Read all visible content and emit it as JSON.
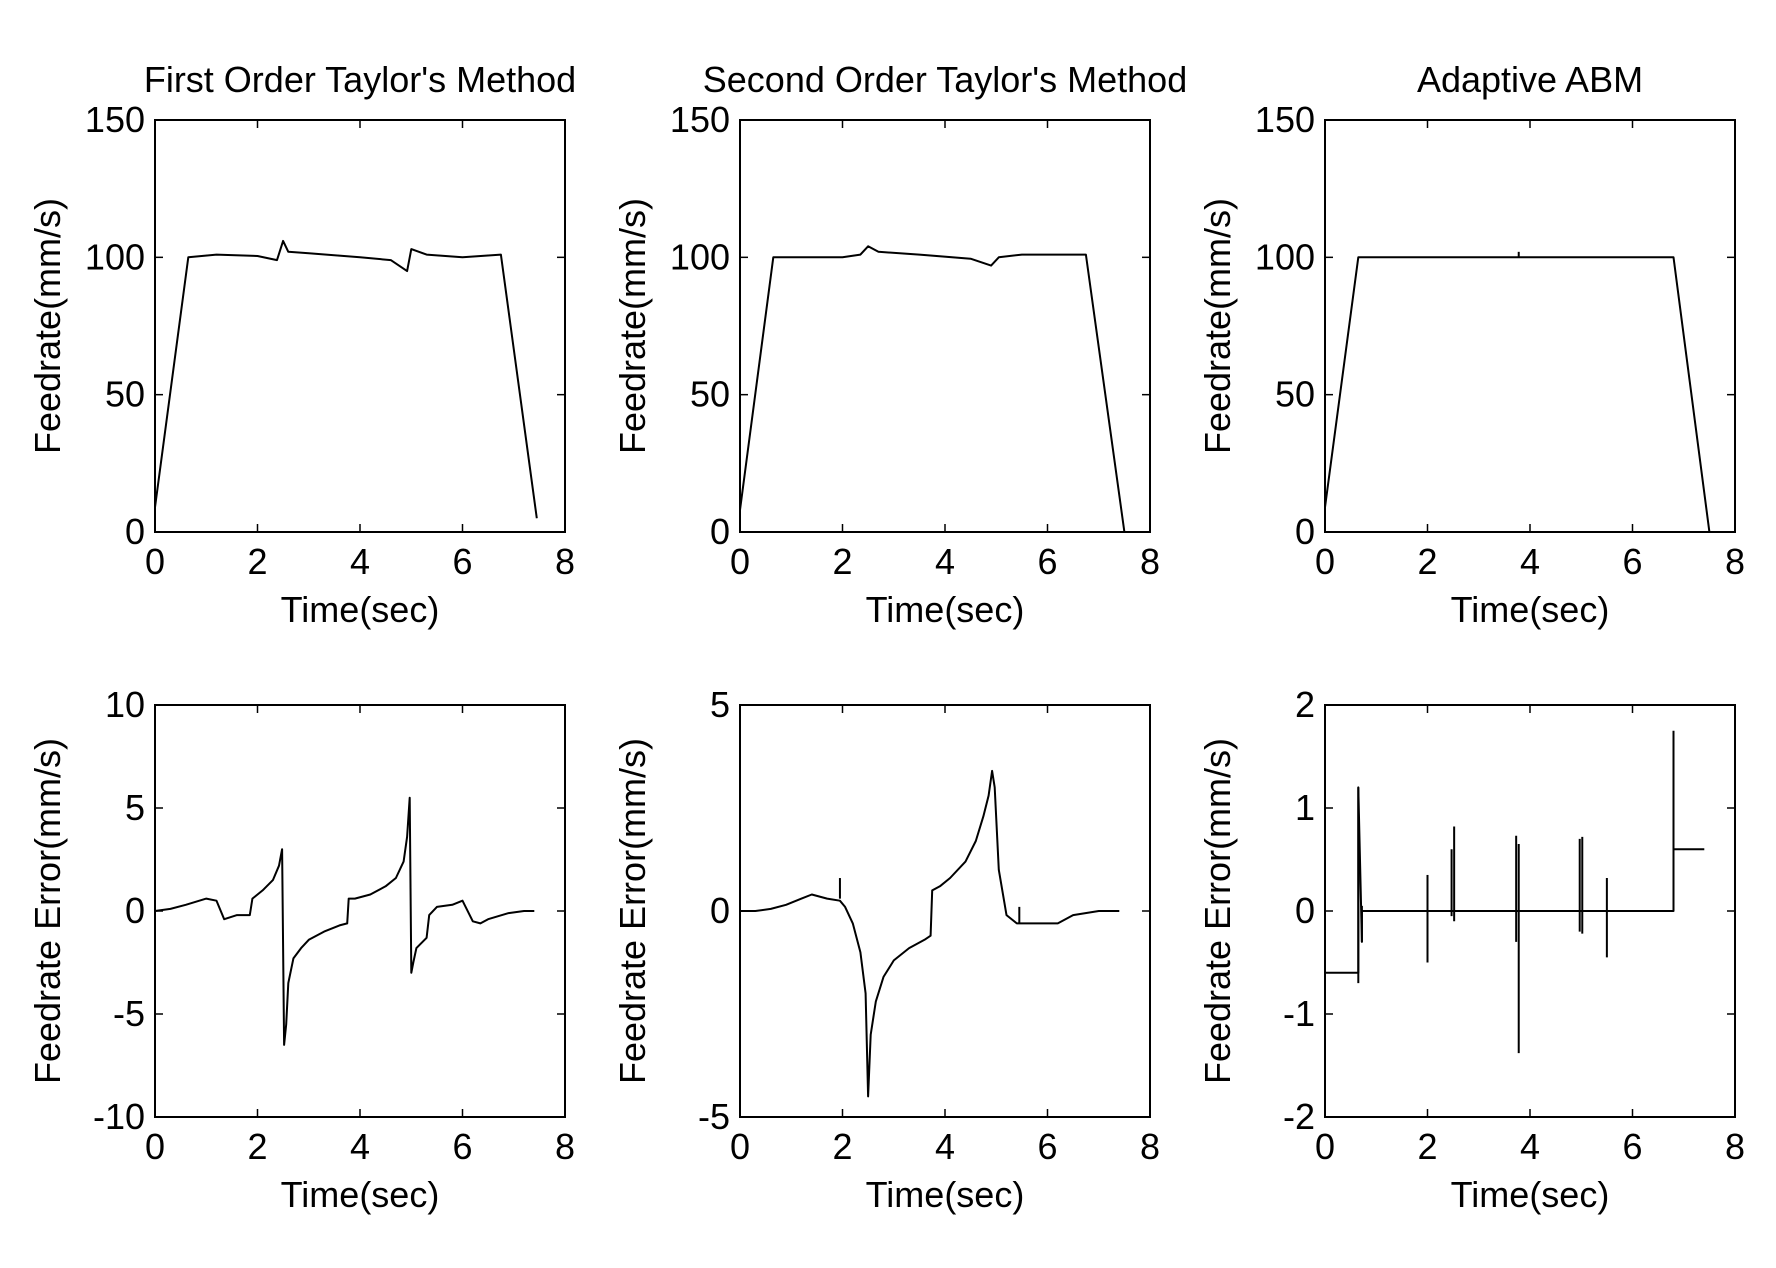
{
  "chart_data": [
    {
      "type": "line",
      "title": "First Order Taylor's Method",
      "xlabel": "Time(sec)",
      "ylabel": "Feedrate(mm/s)",
      "xlim": [
        0,
        8
      ],
      "ylim": [
        0,
        150
      ],
      "xticks": [
        0,
        2,
        4,
        6,
        8
      ],
      "yticks": [
        0,
        50,
        100,
        150
      ],
      "grid": false,
      "series": [
        {
          "x": [
            0,
            0.65,
            1.2,
            2.0,
            2.38,
            2.5,
            2.6,
            3.0,
            4.0,
            4.6,
            4.92,
            5.0,
            5.3,
            6.0,
            6.75,
            7.45
          ],
          "y": [
            9,
            100,
            101,
            100.5,
            99,
            106,
            102,
            101.5,
            100,
            99,
            95,
            103,
            101,
            100,
            101,
            5
          ]
        }
      ],
      "spikes": []
    },
    {
      "type": "line",
      "title": "Second Order Taylor's Method",
      "xlabel": "Time(sec)",
      "ylabel": "Feedrate(mm/s)",
      "xlim": [
        0,
        8
      ],
      "ylim": [
        0,
        150
      ],
      "xticks": [
        0,
        2,
        4,
        6,
        8
      ],
      "yticks": [
        0,
        50,
        100,
        150
      ],
      "grid": false,
      "series": [
        {
          "x": [
            0,
            0.65,
            2.0,
            2.35,
            2.5,
            2.7,
            3.5,
            4.5,
            4.9,
            5.05,
            5.5,
            6.75,
            7.5
          ],
          "y": [
            8,
            100,
            100,
            101,
            104,
            102,
            101,
            99.5,
            97,
            100,
            101,
            101,
            0
          ]
        }
      ],
      "spikes": []
    },
    {
      "type": "line",
      "title": "Adaptive ABM",
      "xlabel": "Time(sec)",
      "ylabel": "Feedrate(mm/s)",
      "xlim": [
        0,
        8
      ],
      "ylim": [
        0,
        150
      ],
      "xticks": [
        0,
        2,
        4,
        6,
        8
      ],
      "yticks": [
        0,
        50,
        100,
        150
      ],
      "grid": false,
      "series": [
        {
          "x": [
            0,
            0.65,
            6.8,
            7.5
          ],
          "y": [
            9,
            100,
            100,
            0
          ]
        }
      ],
      "spikes": [
        {
          "x": 3.78,
          "y0": 100,
          "y1": 102
        }
      ]
    },
    {
      "type": "line",
      "title": "",
      "xlabel": "Time(sec)",
      "ylabel": "Feedrate Error(mm/s)",
      "xlim": [
        0,
        8
      ],
      "ylim": [
        -10,
        10
      ],
      "xticks": [
        0,
        2,
        4,
        6,
        8
      ],
      "yticks": [
        -10,
        -5,
        0,
        5,
        10
      ],
      "grid": false,
      "series": [
        {
          "x": [
            0,
            0.3,
            0.6,
            1.0,
            1.2,
            1.35,
            1.6,
            1.85,
            1.9,
            1.95,
            2.1,
            2.3,
            2.42,
            2.48,
            2.52,
            2.56,
            2.6,
            2.7,
            2.85,
            3.0,
            3.3,
            3.6,
            3.75,
            3.78,
            3.9,
            4.2,
            4.5,
            4.7,
            4.85,
            4.92,
            4.97,
            5.0,
            5.04,
            5.1,
            5.3,
            5.35,
            5.5,
            5.8,
            6.0,
            6.2,
            6.35,
            6.5,
            6.9,
            7.2,
            7.4
          ],
          "y": [
            0,
            0.1,
            0.3,
            0.6,
            0.5,
            -0.4,
            -0.2,
            -0.2,
            0.6,
            0.7,
            1.0,
            1.5,
            2.2,
            3.0,
            -6.5,
            -5.5,
            -3.5,
            -2.3,
            -1.8,
            -1.4,
            -1.0,
            -0.7,
            -0.6,
            0.6,
            0.6,
            0.8,
            1.2,
            1.6,
            2.4,
            3.6,
            5.5,
            -3.0,
            -2.5,
            -1.8,
            -1.3,
            -0.2,
            0.2,
            0.3,
            0.5,
            -0.5,
            -0.6,
            -0.4,
            -0.1,
            0,
            0
          ]
        }
      ],
      "spikes": []
    },
    {
      "type": "line",
      "title": "",
      "xlabel": "Time(sec)",
      "ylabel": "Feedrate Error(mm/s)",
      "xlim": [
        0,
        8
      ],
      "ylim": [
        -5,
        5
      ],
      "xticks": [
        0,
        2,
        4,
        6,
        8
      ],
      "yticks": [
        -5,
        0,
        5
      ],
      "grid": false,
      "series": [
        {
          "x": [
            0,
            0.3,
            0.6,
            0.9,
            1.2,
            1.4,
            1.7,
            1.95,
            2.05,
            2.2,
            2.35,
            2.45,
            2.5,
            2.55,
            2.65,
            2.8,
            3.0,
            3.3,
            3.6,
            3.72,
            3.75,
            3.9,
            4.1,
            4.4,
            4.6,
            4.75,
            4.85,
            4.92,
            4.97,
            5.05,
            5.2,
            5.4,
            5.7,
            6.0,
            6.2,
            6.5,
            7.0,
            7.4
          ],
          "y": [
            0,
            0,
            0.05,
            0.15,
            0.3,
            0.4,
            0.3,
            0.25,
            0.1,
            -0.3,
            -1.0,
            -2.0,
            -4.5,
            -3.0,
            -2.2,
            -1.6,
            -1.2,
            -0.9,
            -0.7,
            -0.6,
            0.5,
            0.6,
            0.8,
            1.2,
            1.7,
            2.3,
            2.8,
            3.4,
            3.0,
            1.0,
            -0.1,
            -0.3,
            -0.3,
            -0.3,
            -0.3,
            -0.1,
            0,
            0
          ]
        }
      ],
      "spikes": [
        {
          "x": 1.95,
          "y0": 0.3,
          "y1": 0.8
        },
        {
          "x": 5.45,
          "y0": -0.3,
          "y1": 0.1
        }
      ]
    },
    {
      "type": "line",
      "title": "",
      "xlabel": "Time(sec)",
      "ylabel": "Feedrate Error(mm/s)",
      "xlim": [
        0,
        8
      ],
      "ylim": [
        -2,
        2
      ],
      "xticks": [
        0,
        2,
        4,
        6,
        8
      ],
      "yticks": [
        -2,
        -1,
        0,
        1,
        2
      ],
      "grid": false,
      "series": [
        {
          "x": [
            0,
            0.65,
            0.65,
            0.72,
            0.72,
            6.8,
            6.8,
            7.4
          ],
          "y": [
            -0.6,
            -0.6,
            1.2,
            -0.3,
            0,
            0,
            0.6,
            0.6
          ]
        }
      ],
      "spikes": [
        {
          "x": 0.65,
          "y0": -0.7,
          "y1": 1.2
        },
        {
          "x": 0.72,
          "y0": -0.3,
          "y1": 0.05
        },
        {
          "x": 2.0,
          "y0": -0.5,
          "y1": 0.35
        },
        {
          "x": 2.47,
          "y0": -0.05,
          "y1": 0.6
        },
        {
          "x": 2.52,
          "y0": -0.1,
          "y1": 0.82
        },
        {
          "x": 3.73,
          "y0": -0.3,
          "y1": 0.73
        },
        {
          "x": 3.78,
          "y0": -1.38,
          "y1": 0.65
        },
        {
          "x": 4.97,
          "y0": -0.2,
          "y1": 0.7
        },
        {
          "x": 5.02,
          "y0": -0.22,
          "y1": 0.72
        },
        {
          "x": 5.5,
          "y0": -0.45,
          "y1": 0.32
        },
        {
          "x": 6.8,
          "y0": 0,
          "y1": 1.75
        }
      ]
    }
  ]
}
